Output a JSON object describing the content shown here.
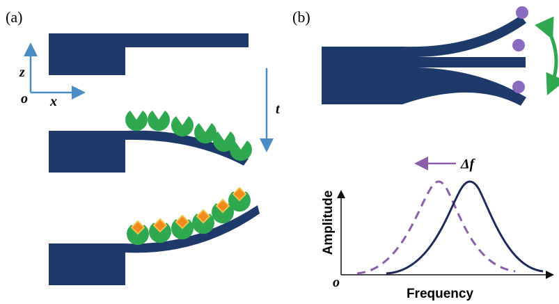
{
  "panel_a": {
    "label": "(a)",
    "axis_z": "z",
    "axis_x": "x",
    "origin": "o",
    "time": "t"
  },
  "panel_b": {
    "label": "(b)",
    "shift": "Δf",
    "y_axis": "Amplitude",
    "x_axis": "Frequency",
    "origin": "o"
  }
}
